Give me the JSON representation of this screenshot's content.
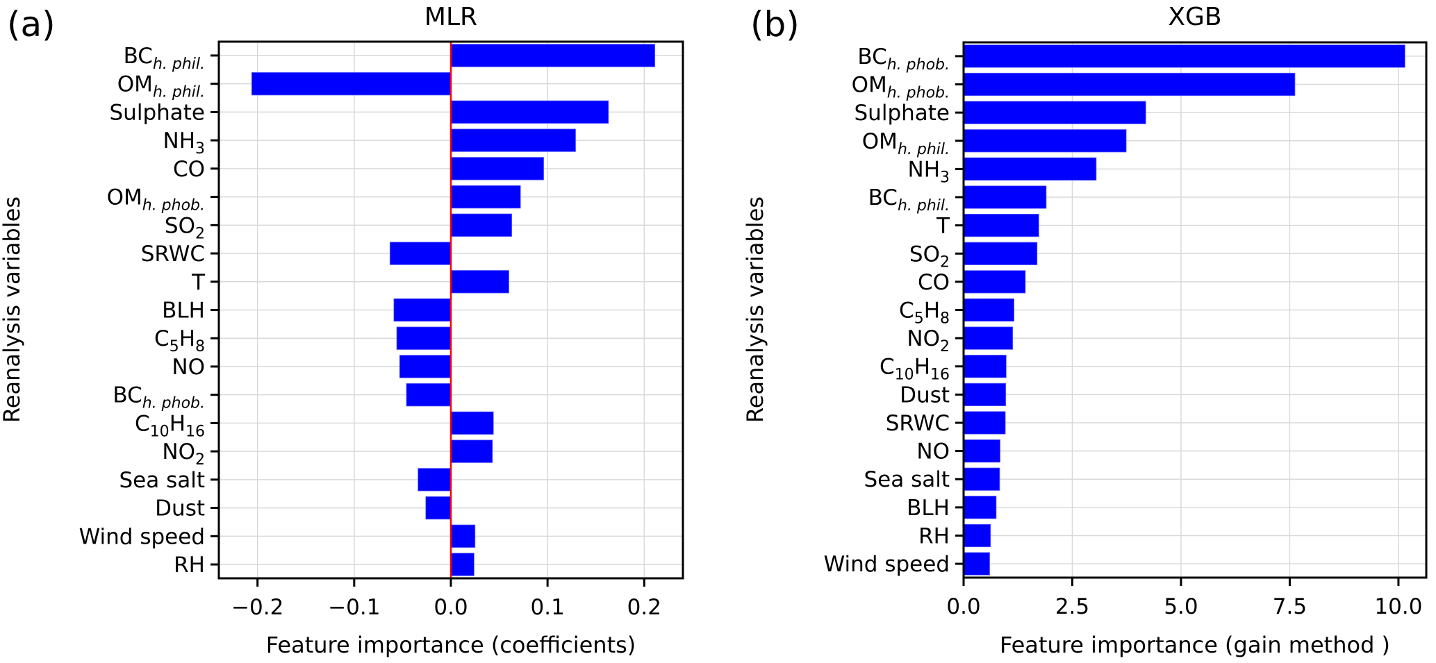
{
  "chart_data": [
    {
      "id": "mlr",
      "type": "bar",
      "orientation": "horizontal",
      "panel_letter": "(a)",
      "title": "MLR",
      "xlabel": "Feature importance (coefficients)",
      "ylabel": "Reanalysis variables",
      "xlim": [
        -0.24,
        0.24
      ],
      "xticks": [
        -0.2,
        -0.1,
        0.0,
        0.1,
        0.2
      ],
      "xtick_labels": [
        "−0.2",
        "−0.1",
        "0.0",
        "0.1",
        "0.2"
      ],
      "grid": true,
      "zero_line": true,
      "zero_line_color": "#ff0000",
      "bar_color": "#0000ff",
      "categories": [
        {
          "base": "BC",
          "sub": "h. phil.",
          "sub_italic": true
        },
        {
          "base": "OM",
          "sub": "h. phil.",
          "sub_italic": true
        },
        {
          "base": "Sulphate"
        },
        {
          "base": "NH",
          "sub": "3"
        },
        {
          "base": "CO"
        },
        {
          "base": "OM",
          "sub": "h. phob.",
          "sub_italic": true
        },
        {
          "base": "SO",
          "sub": "2"
        },
        {
          "base": "SRWC"
        },
        {
          "base": "T"
        },
        {
          "base": "BLH"
        },
        {
          "base": "C",
          "sub": "5",
          "base2": "H",
          "sub2": "8"
        },
        {
          "base": "NO"
        },
        {
          "base": "BC",
          "sub": "h. phob.",
          "sub_italic": true
        },
        {
          "base": "C",
          "sub": "10",
          "base2": "H",
          "sub2": "16"
        },
        {
          "base": "NO",
          "sub": "2"
        },
        {
          "base": "Sea salt"
        },
        {
          "base": "Dust"
        },
        {
          "base": "Wind speed"
        },
        {
          "base": "RH"
        }
      ],
      "values": [
        0.211,
        -0.206,
        0.163,
        0.129,
        0.096,
        0.072,
        0.063,
        -0.063,
        0.06,
        -0.059,
        -0.056,
        -0.053,
        -0.046,
        0.044,
        0.043,
        -0.034,
        -0.026,
        0.025,
        0.024
      ]
    },
    {
      "id": "xgb",
      "type": "bar",
      "orientation": "horizontal",
      "panel_letter": "(b)",
      "title": "XGB",
      "xlabel": "Feature importance (gain method )",
      "ylabel": "Reanalysis variables",
      "xlim": [
        0,
        10.64
      ],
      "xticks": [
        0.0,
        2.5,
        5.0,
        7.5,
        10.0
      ],
      "xtick_labels": [
        "0.0",
        "2.5",
        "5.0",
        "7.5",
        "10.0"
      ],
      "grid": true,
      "zero_line": false,
      "bar_color": "#0000ff",
      "categories": [
        {
          "base": "BC",
          "sub": "h. phob.",
          "sub_italic": true
        },
        {
          "base": "OM",
          "sub": "h. phob.",
          "sub_italic": true
        },
        {
          "base": "Sulphate"
        },
        {
          "base": "OM",
          "sub": "h. phil.",
          "sub_italic": true
        },
        {
          "base": "NH",
          "sub": "3"
        },
        {
          "base": "BC",
          "sub": "h. phil.",
          "sub_italic": true
        },
        {
          "base": "T"
        },
        {
          "base": "SO",
          "sub": "2"
        },
        {
          "base": "CO"
        },
        {
          "base": "C",
          "sub": "5",
          "base2": "H",
          "sub2": "8"
        },
        {
          "base": "NO",
          "sub": "2"
        },
        {
          "base": "C",
          "sub": "10",
          "base2": "H",
          "sub2": "16"
        },
        {
          "base": "Dust"
        },
        {
          "base": "SRWC"
        },
        {
          "base": "NO"
        },
        {
          "base": "Sea salt"
        },
        {
          "base": "BLH"
        },
        {
          "base": "RH"
        },
        {
          "base": "Wind speed"
        }
      ],
      "values": [
        10.15,
        7.62,
        4.19,
        3.74,
        3.05,
        1.9,
        1.73,
        1.69,
        1.42,
        1.16,
        1.13,
        0.98,
        0.97,
        0.96,
        0.84,
        0.83,
        0.75,
        0.62,
        0.6
      ]
    }
  ]
}
